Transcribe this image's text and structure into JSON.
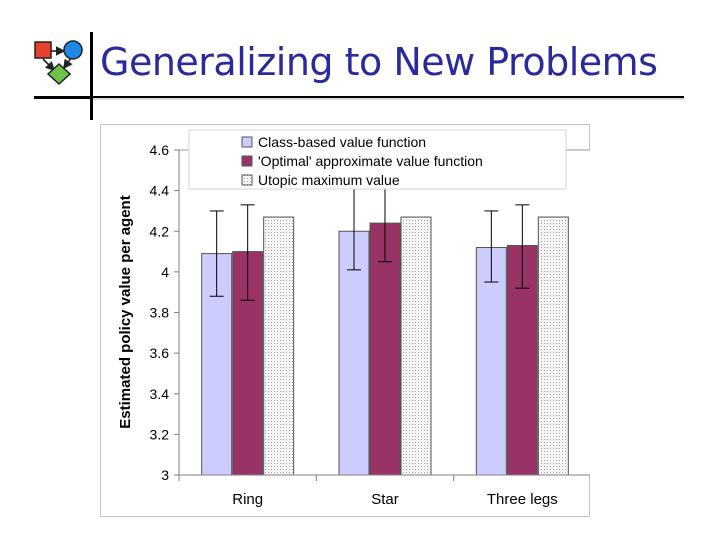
{
  "slide": {
    "title": "Generalizing to New Problems"
  },
  "logo": {
    "icon": "flowchart-logo-icon",
    "colors": {
      "square": "#e8402a",
      "circle": "#1e88e5",
      "diamond": "#6cc24a"
    }
  },
  "chart_data": {
    "type": "bar",
    "title": "",
    "xlabel": "",
    "ylabel": "Estimated policy value per agent",
    "ylim": [
      3,
      4.6
    ],
    "yticks": [
      3,
      3.2,
      3.4,
      3.6,
      3.8,
      4,
      4.2,
      4.4,
      4.6
    ],
    "ytick_labels": [
      "3",
      "3.2",
      "3.4",
      "3.6",
      "3.8",
      "4",
      "4.2",
      "4.4",
      "4.6"
    ],
    "categories": [
      "Ring",
      "Star",
      "Three legs"
    ],
    "legend_position": "top",
    "series": [
      {
        "name": "Class-based value function",
        "values": [
          4.09,
          4.2,
          4.12
        ],
        "error_low": [
          3.88,
          4.01,
          3.95
        ],
        "error_high": [
          4.3,
          4.42,
          4.3
        ],
        "color": "#ccccff",
        "pattern": "solid"
      },
      {
        "name": "'Optimal' approximate value function",
        "values": [
          4.1,
          4.24,
          4.13
        ],
        "error_low": [
          3.86,
          4.05,
          3.92
        ],
        "error_high": [
          4.33,
          4.42,
          4.33
        ],
        "color": "#993366",
        "pattern": "solid"
      },
      {
        "name": "Utopic maximum value",
        "values": [
          4.27,
          4.27,
          4.27
        ],
        "color": "#f0f0f0",
        "pattern": "dotted"
      }
    ]
  }
}
